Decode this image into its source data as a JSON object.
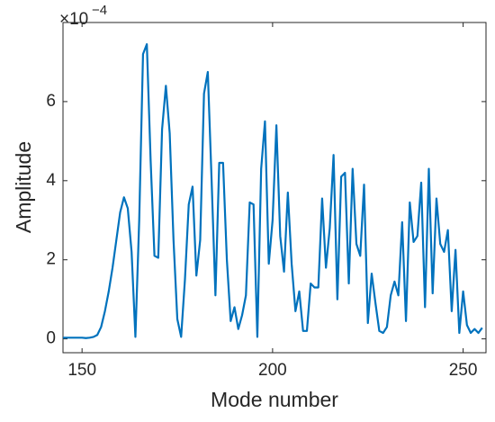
{
  "chart_data": {
    "type": "line",
    "x_label": "Mode number",
    "y_label": "Amplitude",
    "y_multiplier": "×10",
    "y_exponent": "−4",
    "x": [
      145,
      146,
      147,
      148,
      149,
      150,
      151,
      152,
      153,
      154,
      155,
      156,
      157,
      158,
      159,
      160,
      161,
      162,
      163,
      164,
      165,
      166,
      167,
      168,
      169,
      170,
      171,
      172,
      173,
      174,
      175,
      176,
      177,
      178,
      179,
      180,
      181,
      182,
      183,
      184,
      185,
      186,
      187,
      188,
      189,
      190,
      191,
      192,
      193,
      194,
      195,
      196,
      197,
      198,
      199,
      200,
      201,
      202,
      203,
      204,
      205,
      206,
      207,
      208,
      209,
      210,
      211,
      212,
      213,
      214,
      215,
      216,
      217,
      218,
      219,
      220,
      221,
      222,
      223,
      224,
      225,
      226,
      227,
      228,
      229,
      230,
      231,
      232,
      233,
      234,
      235,
      236,
      237,
      238,
      239,
      240,
      241,
      242,
      243,
      244,
      245,
      246,
      247,
      248,
      249,
      250,
      251,
      252,
      253,
      254,
      255
    ],
    "series": [
      {
        "color": "#0072bd",
        "values": [
          0.03,
          0.03,
          0.03,
          0.03,
          0.03,
          0.03,
          0.02,
          0.03,
          0.05,
          0.1,
          0.3,
          0.7,
          1.2,
          1.8,
          2.5,
          3.2,
          3.58,
          3.3,
          2.2,
          0.05,
          3.0,
          7.2,
          7.45,
          4.5,
          2.1,
          2.05,
          5.3,
          6.4,
          5.2,
          2.5,
          0.5,
          0.05,
          1.5,
          3.4,
          3.85,
          1.6,
          2.5,
          6.2,
          6.75,
          4.0,
          1.1,
          4.45,
          4.45,
          2.0,
          0.45,
          0.8,
          0.25,
          0.6,
          1.1,
          3.45,
          3.4,
          0.05,
          4.3,
          5.5,
          1.9,
          3.0,
          5.4,
          2.6,
          1.7,
          3.7,
          1.9,
          0.7,
          1.2,
          0.2,
          0.2,
          1.4,
          1.3,
          1.3,
          3.55,
          1.8,
          2.8,
          4.65,
          1.0,
          4.1,
          4.2,
          1.4,
          4.3,
          2.4,
          2.1,
          3.9,
          0.4,
          1.65,
          0.9,
          0.2,
          0.15,
          0.3,
          1.1,
          1.45,
          1.1,
          2.95,
          0.45,
          3.45,
          2.45,
          2.6,
          3.95,
          0.8,
          4.3,
          1.15,
          3.55,
          2.4,
          2.2,
          2.75,
          0.7,
          2.25,
          0.15,
          1.2,
          0.35,
          0.15,
          0.25,
          0.15,
          0.28
        ]
      }
    ],
    "xlim": [
      145,
      256
    ],
    "ylim": [
      -0.35,
      8
    ],
    "xticks": [
      150,
      200,
      250
    ],
    "yticks": [
      0,
      2,
      4,
      6
    ]
  }
}
